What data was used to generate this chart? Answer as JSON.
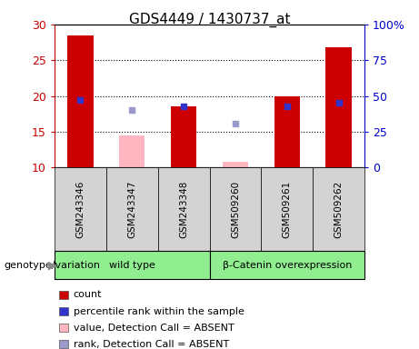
{
  "title": "GDS4449 / 1430737_at",
  "samples": [
    "GSM243346",
    "GSM243347",
    "GSM243348",
    "GSM509260",
    "GSM509261",
    "GSM509262"
  ],
  "groups": [
    {
      "name": "wild type",
      "color": "#90ee90",
      "span": [
        0,
        3
      ]
    },
    {
      "name": "β-Catenin overexpression",
      "color": "#90ee90",
      "span": [
        3,
        6
      ]
    }
  ],
  "ylim_left": [
    10,
    30
  ],
  "ylim_right": [
    0,
    100
  ],
  "yticks_left": [
    10,
    15,
    20,
    25,
    30
  ],
  "yticks_right": [
    0,
    25,
    50,
    75,
    100
  ],
  "yticklabels_right": [
    "0",
    "25",
    "50",
    "75",
    "100%"
  ],
  "bar_color": "#cc0000",
  "bar_absent_color": "#ffb6c1",
  "rank_color": "#3333cc",
  "rank_absent_color": "#9999cc",
  "bar_width": 0.5,
  "counts": [
    28.5,
    null,
    18.5,
    null,
    20.0,
    26.8
  ],
  "counts_absent": [
    null,
    14.5,
    null,
    10.8,
    null,
    null
  ],
  "ranks": [
    19.5,
    null,
    18.5,
    null,
    18.5,
    19.0
  ],
  "ranks_absent": [
    null,
    18.0,
    null,
    16.2,
    null,
    null
  ],
  "legend_items": [
    {
      "color": "#cc0000",
      "label": "count"
    },
    {
      "color": "#3333cc",
      "label": "percentile rank within the sample"
    },
    {
      "color": "#ffb6c1",
      "label": "value, Detection Call = ABSENT"
    },
    {
      "color": "#9999cc",
      "label": "rank, Detection Call = ABSENT"
    }
  ],
  "axis_bg": "#ffffff",
  "left_axis_color": "#cc0000",
  "right_axis_color": "#0000cc",
  "annotation_label": "genotype/variation",
  "sample_box_color": "#d3d3d3",
  "group_box_color": "#90ee90"
}
